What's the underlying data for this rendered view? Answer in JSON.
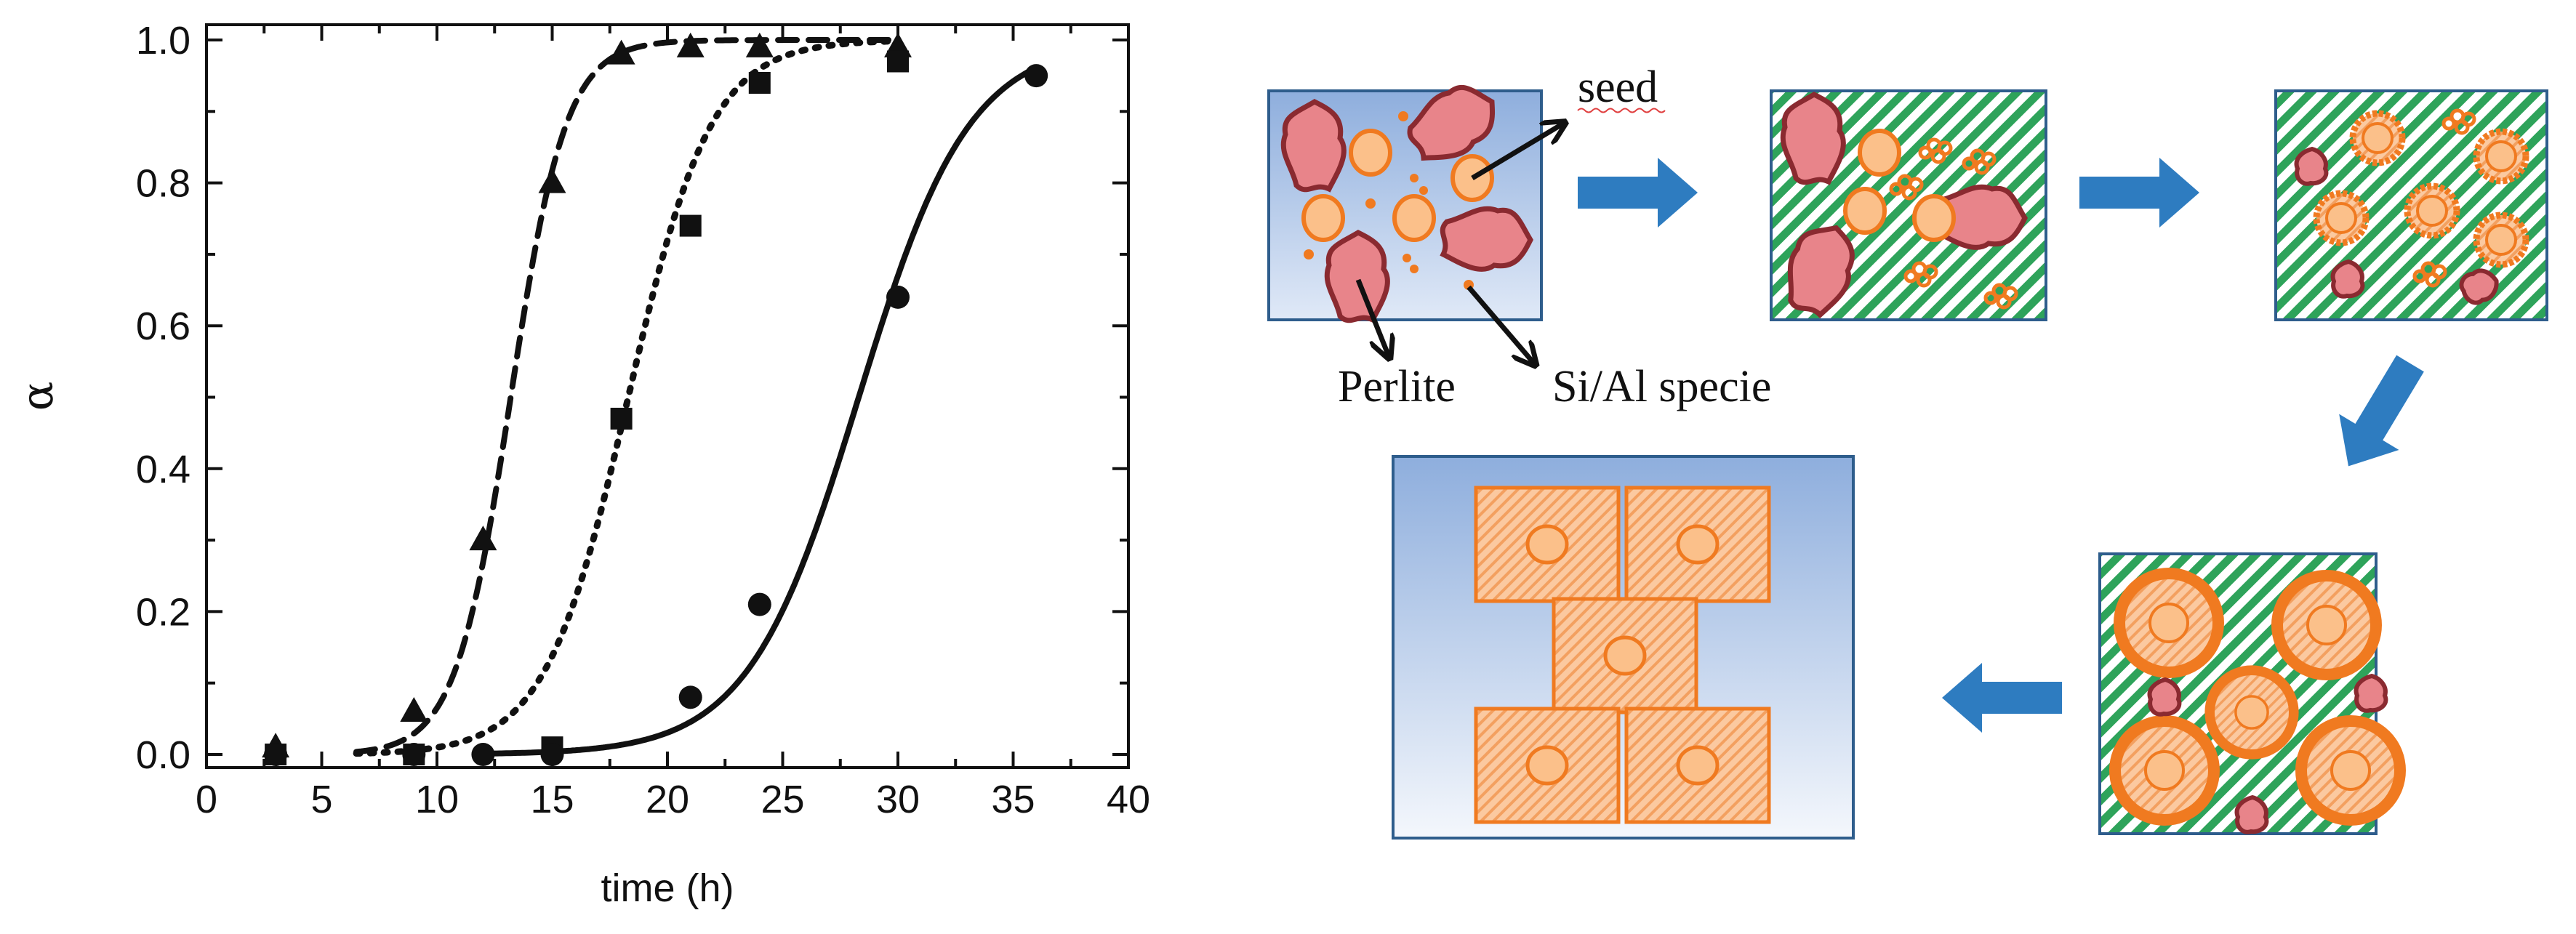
{
  "chart_data": {
    "type": "scatter",
    "title": "",
    "xlabel": "time (h)",
    "ylabel": "α",
    "xlim": [
      0,
      40
    ],
    "ylim": [
      0,
      1.0
    ],
    "x_ticks": [
      "0",
      "5",
      "10",
      "15",
      "20",
      "25",
      "30",
      "35",
      "40"
    ],
    "y_ticks": [
      "0.0",
      "0.2",
      "0.4",
      "0.6",
      "0.8",
      "1.0"
    ],
    "grid": false,
    "legend": "none",
    "series": [
      {
        "marker": "triangle",
        "line": "dashed",
        "x": [
          3,
          9,
          12,
          15,
          18,
          21,
          24,
          30
        ],
        "y": [
          0.01,
          0.06,
          0.3,
          0.8,
          0.98,
          0.99,
          0.99,
          0.99
        ]
      },
      {
        "marker": "square",
        "line": "dotted",
        "x": [
          3,
          9,
          15,
          18,
          21,
          24,
          30
        ],
        "y": [
          0.0,
          0.0,
          0.01,
          0.47,
          0.74,
          0.94,
          0.97
        ]
      },
      {
        "marker": "circle",
        "line": "solid",
        "x": [
          3,
          9,
          12,
          15,
          21,
          24,
          30,
          36
        ],
        "y": [
          0.0,
          0.0,
          0.0,
          0.0,
          0.08,
          0.21,
          0.64,
          0.95
        ]
      }
    ]
  },
  "diagram": {
    "labels": {
      "seed": "seed",
      "perlite": "Perlite",
      "sial": "Si/Al specie"
    },
    "colors": {
      "box_border": "#2e5d8c",
      "hatch": "#2ea35a",
      "arrow": "#2e7cc0",
      "crystal": "#f07a20",
      "seed_fill": "#fbc08a",
      "perlite": "#e8848a"
    }
  }
}
